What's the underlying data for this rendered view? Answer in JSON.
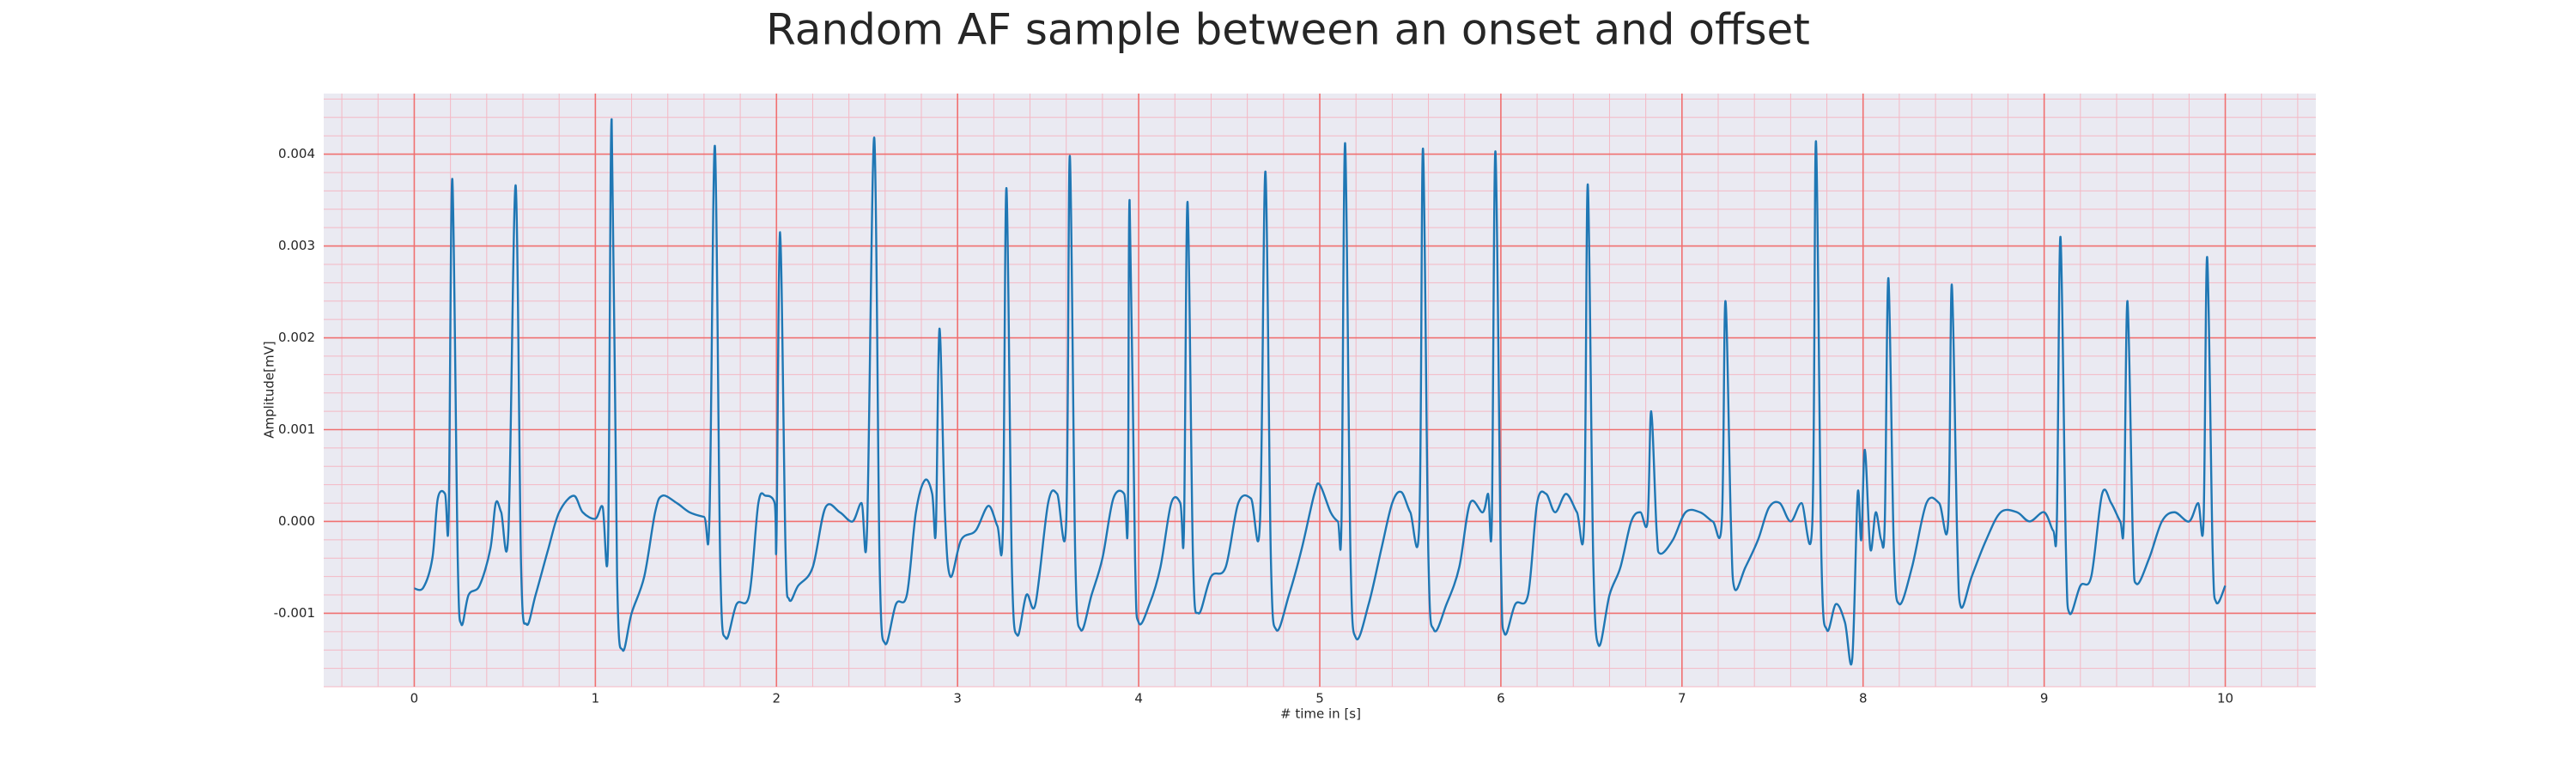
{
  "chart_data": {
    "type": "line",
    "title": "Random AF sample between an onset and offset",
    "xlabel": "# time in [s]",
    "ylabel": "Amplitude[mV]",
    "xlim": [
      -0.5,
      10.5
    ],
    "ylim": [
      -0.0018,
      0.00466
    ],
    "xticks": [
      0,
      1,
      2,
      3,
      4,
      5,
      6,
      7,
      8,
      9,
      10
    ],
    "yticks": [
      -0.001,
      {
        "value": 0,
        "label": "0.000"
      },
      0.001,
      0.002,
      0.003,
      0.004
    ],
    "grid": true,
    "grid_color": "#f07070",
    "minor_grid": {
      "x": 0.2,
      "y": 0.0002,
      "color": "#f4b8c4"
    },
    "background": "#eaeaf2",
    "x": [
      0,
      0.05,
      0.1,
      0.13,
      0.17,
      0.19,
      0.21,
      0.24,
      0.26,
      0.3,
      0.36,
      0.42,
      0.45,
      0.48,
      0.52,
      0.56,
      0.59,
      0.62,
      0.67,
      0.74,
      0.8,
      0.88,
      0.93,
      1.0,
      1.04,
      1.07,
      1.09,
      1.12,
      1.15,
      1.2,
      1.27,
      1.33,
      1.37,
      1.45,
      1.52,
      1.6,
      1.63,
      1.66,
      1.69,
      1.72,
      1.78,
      1.85,
      1.9,
      1.94,
      1.99,
      2.0,
      2.02,
      2.05,
      2.07,
      2.12,
      2.2,
      2.27,
      2.35,
      2.42,
      2.47,
      2.5,
      2.54,
      2.57,
      2.6,
      2.66,
      2.72,
      2.77,
      2.82,
      2.86,
      2.88,
      2.9,
      2.93,
      2.96,
      3.02,
      3.1,
      3.17,
      3.22,
      3.25,
      3.27,
      3.3,
      3.33,
      3.38,
      3.43,
      3.5,
      3.55,
      3.6,
      3.62,
      3.65,
      3.68,
      3.74,
      3.8,
      3.86,
      3.92,
      3.94,
      3.95,
      3.98,
      4.0,
      4.06,
      4.12,
      4.18,
      4.23,
      4.25,
      4.27,
      4.3,
      4.33,
      4.4,
      4.48,
      4.55,
      4.62,
      4.67,
      4.7,
      4.73,
      4.76,
      4.83,
      4.9,
      4.97,
      5.0,
      5.06,
      5.1,
      5.12,
      5.14,
      5.17,
      5.2,
      5.27,
      5.34,
      5.4,
      5.45,
      5.5,
      5.55,
      5.57,
      5.6,
      5.63,
      5.7,
      5.77,
      5.83,
      5.9,
      5.93,
      5.95,
      5.97,
      6.0,
      6.02,
      6.08,
      6.15,
      6.2,
      6.25,
      6.3,
      6.36,
      6.42,
      6.46,
      6.48,
      6.51,
      6.54,
      6.6,
      6.66,
      6.72,
      6.77,
      6.81,
      6.83,
      6.86,
      6.88,
      6.95,
      7.02,
      7.1,
      7.17,
      7.22,
      7.24,
      7.27,
      7.29,
      7.35,
      7.42,
      7.48,
      7.54,
      7.6,
      7.66,
      7.72,
      7.74,
      7.77,
      7.8,
      7.85,
      7.9,
      7.94,
      7.97,
      7.99,
      8.01,
      8.04,
      8.07,
      8.1,
      8.12,
      8.14,
      8.17,
      8.2,
      8.27,
      8.35,
      8.42,
      8.47,
      8.49,
      8.52,
      8.54,
      8.6,
      8.68,
      8.76,
      8.85,
      8.92,
      9.0,
      9.05,
      9.07,
      9.09,
      9.12,
      9.14,
      9.2,
      9.26,
      9.32,
      9.37,
      9.42,
      9.44,
      9.46,
      9.49,
      9.51,
      9.58,
      9.65,
      9.72,
      9.8,
      9.85,
      9.88,
      9.9,
      9.93,
      9.95,
      10.0
    ],
    "series": [
      {
        "color": "#1f77b4",
        "values": [
          -0.00073,
          -0.00072,
          -0.0004,
          0.00025,
          0.0003,
          5e-05,
          0.00373,
          -0.0004,
          -0.00112,
          -0.0008,
          -0.0007,
          -0.0003,
          0.0002,
          0.0001,
          -0.0001,
          0.00366,
          -0.0005,
          -0.00112,
          -0.0008,
          -0.0003,
          0.0001,
          0.00028,
          0.0001,
          3e-05,
          0.00016,
          -0.00025,
          0.00438,
          -0.0006,
          -0.0014,
          -0.001,
          -0.0006,
          0.0001,
          0.00028,
          0.0002,
          0.0001,
          5e-05,
          5e-05,
          0.00409,
          -0.0005,
          -0.00127,
          -0.0009,
          -0.0008,
          0.0002,
          0.00028,
          0.0002,
          -0.0002,
          0.00315,
          -0.0003,
          -0.00085,
          -0.0007,
          -0.0005,
          0.00015,
          0.0001,
          0,
          0.0002,
          -0.0001,
          0.00418,
          -0.0005,
          -0.00133,
          -0.0009,
          -0.0008,
          0.0001,
          0.00045,
          0.0003,
          -0.0001,
          0.0021,
          0.0001,
          -0.0006,
          -0.0002,
          -0.0001,
          0.00017,
          -5e-05,
          -0.0001,
          0.00363,
          -0.0005,
          -0.00124,
          -0.0008,
          -0.0009,
          0.0002,
          0.0003,
          0,
          0.00398,
          -0.0004,
          -0.00118,
          -0.0008,
          -0.0004,
          0.00025,
          0.0003,
          0,
          0.0035,
          -0.0004,
          -0.0011,
          -0.0009,
          -0.0005,
          0.0002,
          0.0002,
          -0.0001,
          0.00348,
          -0.0004,
          -0.001,
          -0.0006,
          -0.0005,
          0.0002,
          0.00025,
          0,
          0.00381,
          -0.0004,
          -0.00118,
          -0.0008,
          -0.0003,
          0.0003,
          0.0004,
          0.0001,
          0,
          0,
          0.00412,
          -0.0004,
          -0.00127,
          -0.0009,
          -0.0003,
          0.0002,
          0.00032,
          0.0001,
          0,
          0.00406,
          -0.0004,
          -0.00118,
          -0.0009,
          -0.0005,
          0.0002,
          0.0001,
          0.0003,
          0,
          0.00403,
          -0.0004,
          -0.00122,
          -0.0009,
          -0.0008,
          0.0002,
          0.0003,
          0.0001,
          0.0003,
          0.0001,
          0,
          0.00367,
          -0.0004,
          -0.00135,
          -0.0008,
          -0.0005,
          0,
          0.0001,
          0,
          0.0012,
          -0.0001,
          -0.00035,
          -0.0002,
          0.0001,
          0.0001,
          0,
          0,
          0.0024,
          0,
          -0.00073,
          -0.0005,
          -0.0002,
          0.00015,
          0.0002,
          0,
          0.0002,
          0,
          0.00414,
          -0.0004,
          -0.00118,
          -0.0009,
          -0.0011,
          -0.0015,
          0.0003,
          -0.0002,
          0.00078,
          -0.0003,
          0.0001,
          -0.0002,
          0,
          0.00265,
          -0.0003,
          -0.0009,
          -0.0005,
          0.0002,
          0.0002,
          0,
          0.00258,
          -0.0002,
          -0.00093,
          -0.0006,
          -0.0002,
          0.0001,
          0.0001,
          0,
          0.0001,
          -0.0001,
          0,
          0.0031,
          -0.0003,
          -0.001,
          -0.0007,
          -0.0006,
          0.0003,
          0.0002,
          0,
          0,
          0.0024,
          -0.0002,
          -0.00068,
          -0.0004,
          0,
          0.0001,
          0,
          0.0002,
          0,
          0.00288,
          -0.0003,
          -0.00088,
          -0.0007
        ]
      }
    ]
  }
}
